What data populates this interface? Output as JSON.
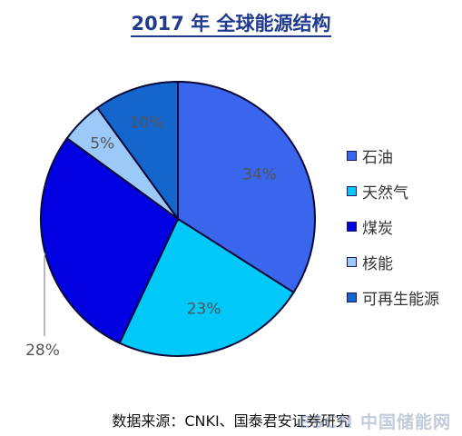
{
  "title": "2017 年  全球能源结构",
  "source": "数据来源：CNKI、国泰君安证券研究",
  "watermark": "ESCN 中国储能网",
  "chart_data": {
    "type": "pie",
    "title": "2017 年  全球能源结构",
    "slices": [
      {
        "label": "石油",
        "value": 34,
        "display": "34%",
        "color": "#3a66ee"
      },
      {
        "label": "天然气",
        "value": 23,
        "display": "23%",
        "color": "#00c8f8"
      },
      {
        "label": "煤炭",
        "value": 28,
        "display": "28%",
        "color": "#0000e0"
      },
      {
        "label": "核能",
        "value": 5,
        "display": "5%",
        "color": "#9ccaf8"
      },
      {
        "label": "可再生能源",
        "value": 10,
        "display": "10%",
        "color": "#1466cc"
      }
    ],
    "legend_position": "right",
    "start": "12 o'clock, clockwise"
  }
}
